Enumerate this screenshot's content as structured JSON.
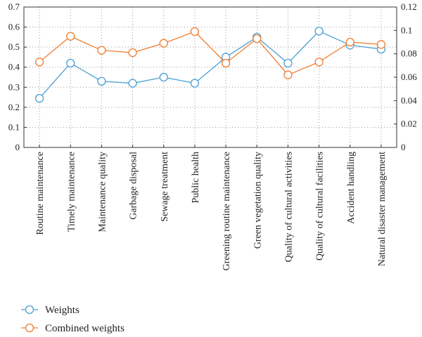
{
  "chart_data": {
    "type": "line",
    "categories": [
      "Routine maintenance",
      "Timely maintenance",
      "Maintenance quality",
      "Garbage disposal",
      "Sewage treatment",
      "Public health",
      "Greening routine maintenance",
      "Green vegetation quality",
      "Quality of cultural activities",
      "Quality of cultural facilities",
      "Accident handling",
      "Natural disaster management"
    ],
    "series": [
      {
        "name": "Weights",
        "axis": "left",
        "color": "#4a9fd4",
        "values": [
          0.245,
          0.42,
          0.33,
          0.32,
          0.35,
          0.32,
          0.45,
          0.55,
          0.42,
          0.58,
          0.51,
          0.49
        ]
      },
      {
        "name": "Combined weights",
        "axis": "right",
        "color": "#ef7d31",
        "values": [
          0.073,
          0.095,
          0.083,
          0.081,
          0.089,
          0.099,
          0.072,
          0.093,
          0.062,
          0.073,
          0.09,
          0.088
        ]
      }
    ],
    "ylim_left": [
      0,
      0.7
    ],
    "ylim_right": [
      0,
      0.12
    ],
    "yticks_left": [
      "0",
      "0.1",
      "0.2",
      "0.3",
      "0.4",
      "0.5",
      "0.6",
      "0.7"
    ],
    "yticks_right": [
      "0",
      "0.02",
      "0.04",
      "0.06",
      "0.08",
      "0.1",
      "0.12"
    ],
    "grid": "dotted",
    "legend_position": "bottom-left"
  }
}
